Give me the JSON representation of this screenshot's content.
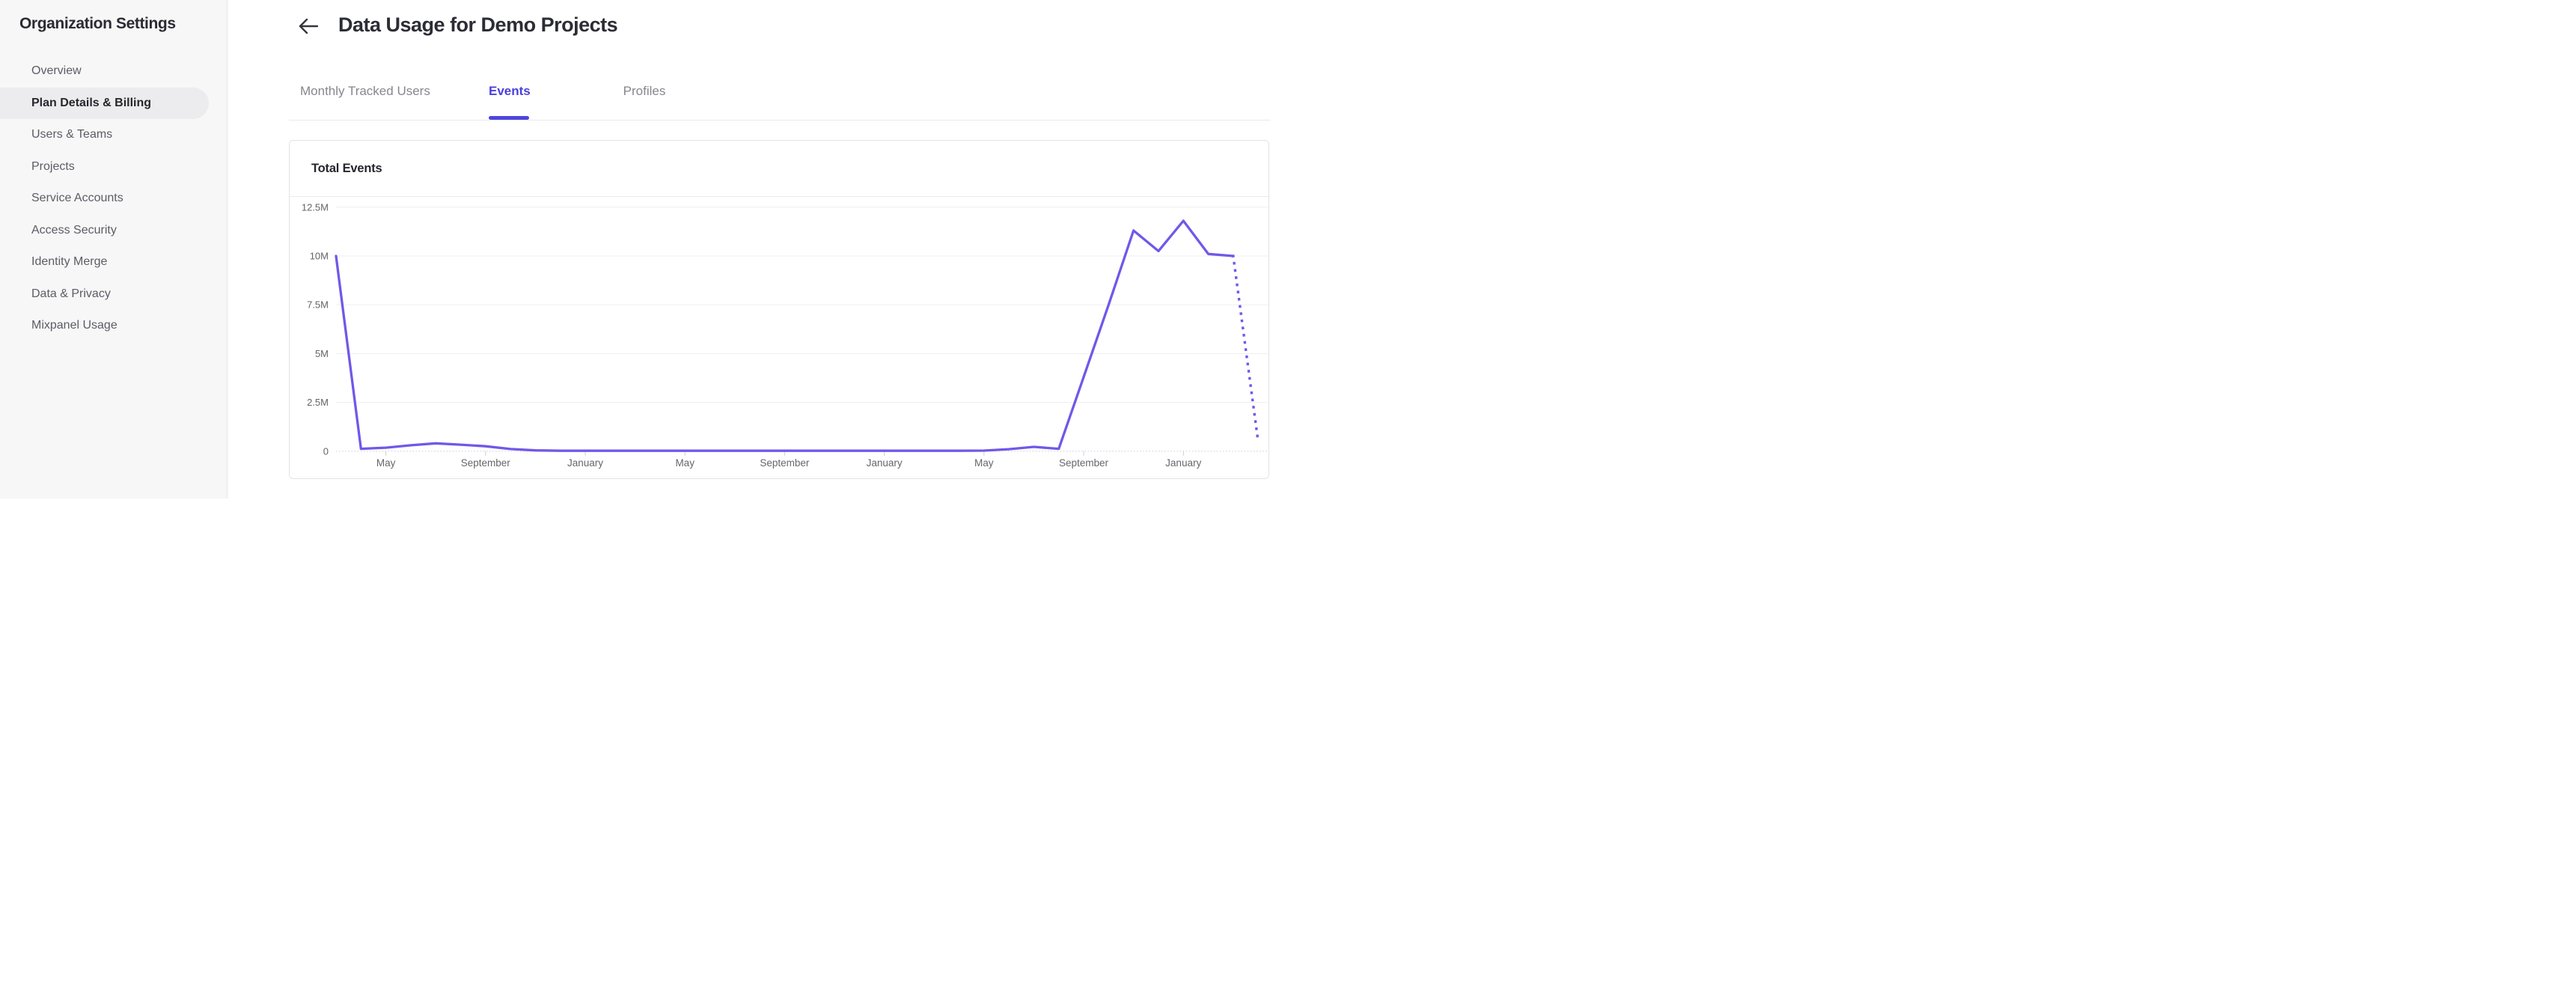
{
  "sidebar": {
    "title": "Organization Settings",
    "items": [
      {
        "label": "Overview",
        "active": false
      },
      {
        "label": "Plan Details & Billing",
        "active": true
      },
      {
        "label": "Users & Teams",
        "active": false
      },
      {
        "label": "Projects",
        "active": false
      },
      {
        "label": "Service Accounts",
        "active": false
      },
      {
        "label": "Access Security",
        "active": false
      },
      {
        "label": "Identity Merge",
        "active": false
      },
      {
        "label": "Data & Privacy",
        "active": false
      },
      {
        "label": "Mixpanel Usage",
        "active": false
      }
    ]
  },
  "header": {
    "title": "Data Usage for Demo Projects",
    "back_icon": "left-arrow-icon"
  },
  "tabs": {
    "items": [
      {
        "label": "Monthly Tracked Users",
        "active": false
      },
      {
        "label": "Events",
        "active": true
      },
      {
        "label": "Profiles",
        "active": false
      }
    ]
  },
  "card": {
    "title": "Total Events"
  },
  "colors": {
    "accent_purple": "#4f44e0",
    "line_purple": "#7257e9",
    "sidebar_bg": "#f7f7f8",
    "active_pill": "#ececee",
    "card_border": "#e3e3e6",
    "label_gray": "#64646b"
  },
  "chart_data": {
    "type": "line",
    "title": "Total Events",
    "grid": true,
    "legend_position": "none",
    "y_axis": {
      "ticks": [
        "12.5M",
        "10M",
        "7.5M",
        "5M",
        "2.5M",
        "0"
      ],
      "lim_millions": [
        0,
        12.5
      ]
    },
    "x_axis": {
      "point_interval": "monthly",
      "ticks": [
        {
          "month_index": 2,
          "label": "May"
        },
        {
          "month_index": 6,
          "label": "September"
        },
        {
          "month_index": 10,
          "label": "January"
        },
        {
          "month_index": 14,
          "label": "May"
        },
        {
          "month_index": 18,
          "label": "September"
        },
        {
          "month_index": 22,
          "label": "January"
        },
        {
          "month_index": 26,
          "label": "May"
        },
        {
          "month_index": 30,
          "label": "September"
        },
        {
          "month_index": 34,
          "label": "January"
        }
      ]
    },
    "series": [
      {
        "name": "Total Events",
        "unit": "millions_of_events",
        "values_millions": [
          10,
          0.12,
          0.18,
          0.3,
          0.4,
          0.33,
          0.25,
          0.11,
          0.04,
          0.02,
          0.02,
          0.02,
          0.02,
          0.02,
          0.02,
          0.02,
          0.02,
          0.02,
          0.02,
          0.02,
          0.02,
          0.02,
          0.02,
          0.02,
          0.02,
          0.02,
          0.03,
          0.1,
          0.22,
          0.12,
          3.8,
          7.5,
          11.3,
          10.25,
          11.8,
          10.1,
          10,
          0.5
        ],
        "solid_until_index": 36,
        "last_segment_projected_dotted": true,
        "color": "#7257e9"
      }
    ]
  }
}
